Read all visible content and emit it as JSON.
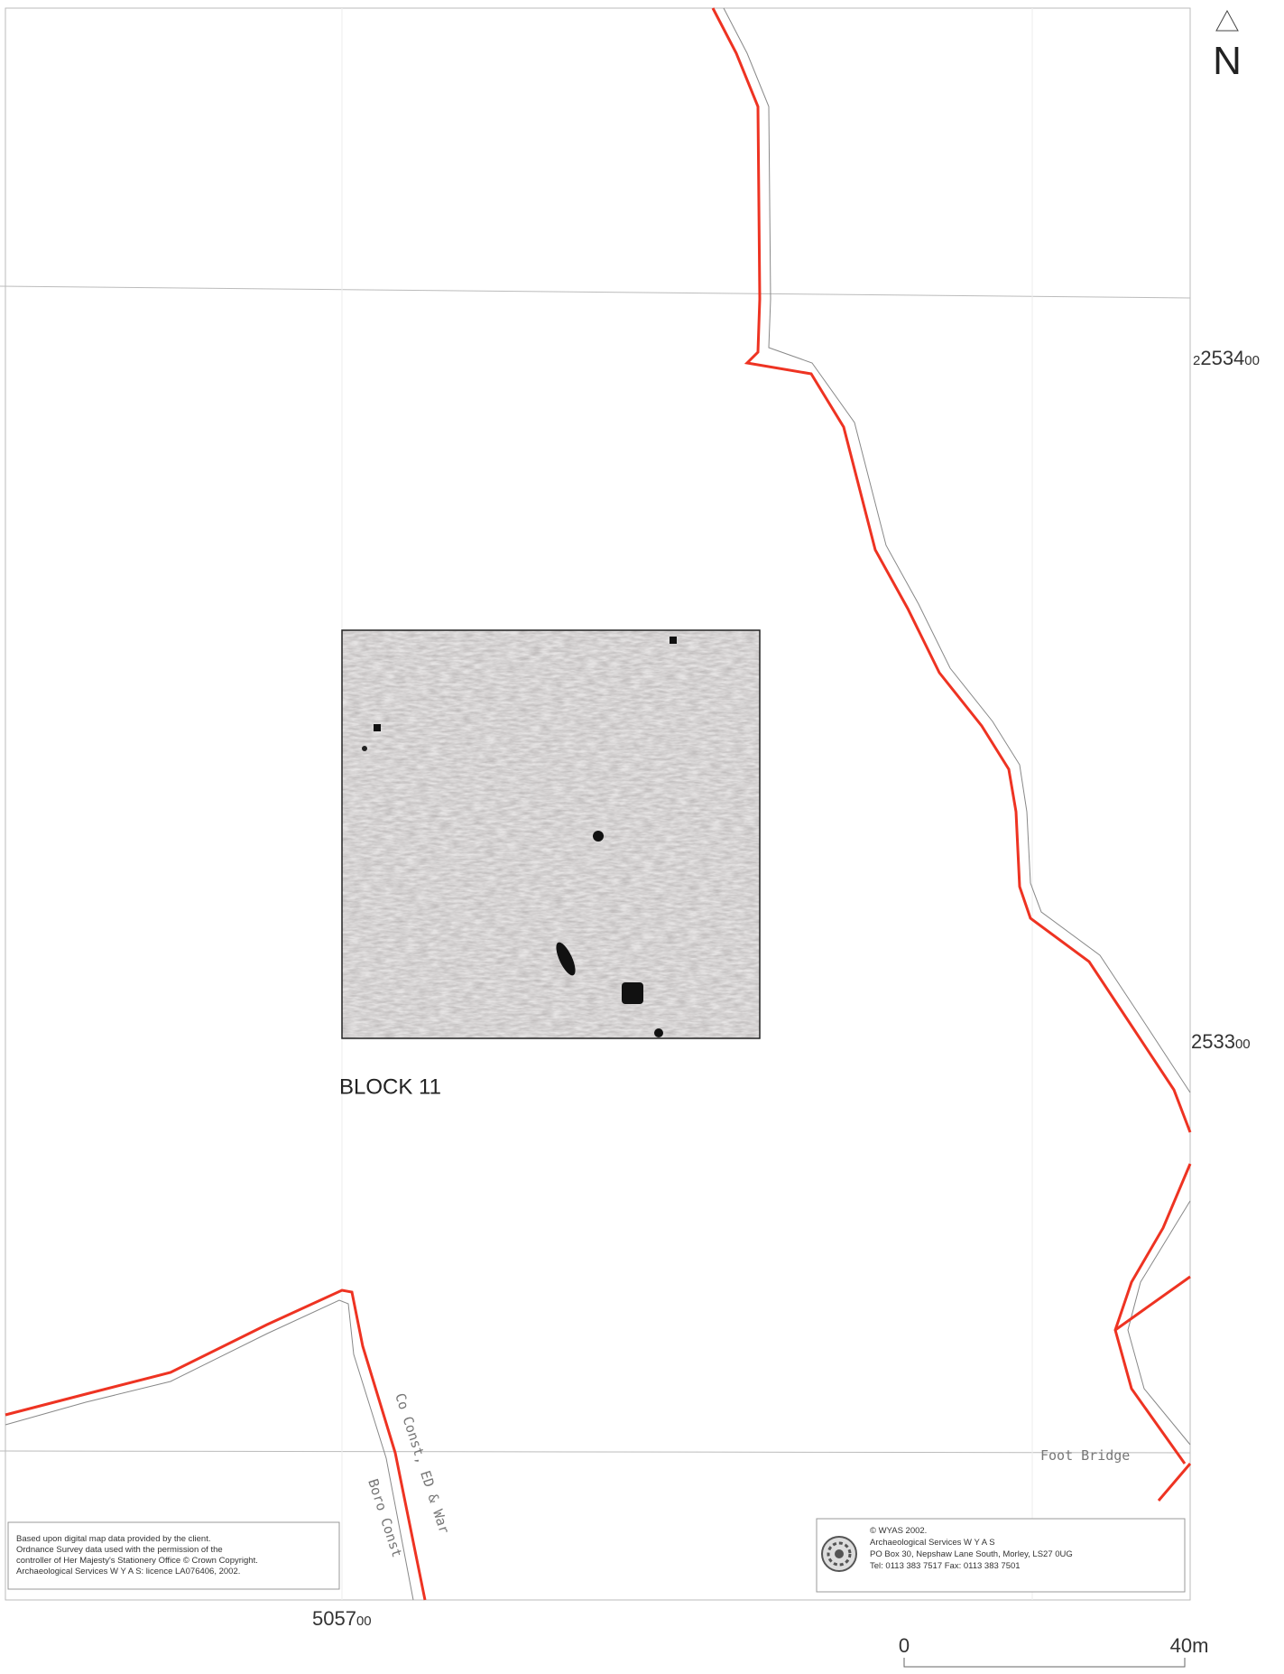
{
  "map": {
    "north_label": "N",
    "northings": [
      {
        "major": "2534",
        "minor": "00"
      },
      {
        "major": "2533",
        "minor": "00"
      }
    ],
    "easting": {
      "major": "5057",
      "minor": "00"
    },
    "block_label": "BLOCK 11",
    "annotations": [
      "Co Const, ED & War",
      "Boro Const",
      "Foot Bridge"
    ],
    "source_note": [
      "Based upon digital map data provided by the client.",
      "Ordnance Survey data used with the permission of the",
      "controller of Her Majesty's Stationery Office © Crown Copyright.",
      "Archaeological Services W Y A S: licence LA076406, 2002."
    ],
    "credit": [
      "© WYAS 2002.",
      "Archaeological Services W Y A S",
      "PO Box 30, Nepshaw Lane South, Morley, LS27 0UG",
      "Tel: 0113 383 7517   Fax: 0113 383 7501"
    ],
    "scale_bar": {
      "start": "0",
      "end": "40m"
    }
  }
}
